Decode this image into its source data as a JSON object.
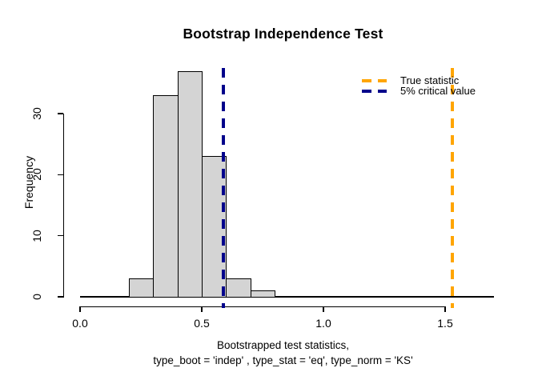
{
  "chart_data": {
    "type": "histogram",
    "title": "Bootstrap Independence Test",
    "ylabel": "Frequency",
    "xlabel_line1": "Bootstrapped test statistics,",
    "xlabel_line2": "type_boot = 'indep' , type_stat = 'eq', type_norm = 'KS'",
    "bin_width": 0.1,
    "bins": [
      {
        "from": 0.2,
        "to": 0.3,
        "count": 3
      },
      {
        "from": 0.3,
        "to": 0.4,
        "count": 33
      },
      {
        "from": 0.4,
        "to": 0.5,
        "count": 37
      },
      {
        "from": 0.5,
        "to": 0.6,
        "count": 23
      },
      {
        "from": 0.6,
        "to": 0.7,
        "count": 3
      },
      {
        "from": 0.7,
        "to": 0.8,
        "count": 1
      }
    ],
    "zero_line_range": [
      0.0,
      1.7
    ],
    "xlim": [
      0.0,
      1.7
    ],
    "ylim": [
      0,
      37
    ],
    "x_ticks": [
      {
        "value": 0.0,
        "label": "0.0"
      },
      {
        "value": 0.5,
        "label": "0.5"
      },
      {
        "value": 1.0,
        "label": "1.0"
      },
      {
        "value": 1.5,
        "label": "1.5"
      }
    ],
    "y_ticks": [
      {
        "value": 0,
        "label": "0"
      },
      {
        "value": 10,
        "label": "10"
      },
      {
        "value": 20,
        "label": "20"
      },
      {
        "value": 30,
        "label": "30"
      }
    ],
    "grid": false,
    "bar_fill": "#D4D4D4",
    "bar_border": "#000000",
    "vlines": [
      {
        "name": "true-statistic-line",
        "value": 1.53,
        "color": "#FFA500",
        "style": "dashed"
      },
      {
        "name": "critical-value-line",
        "value": 0.59,
        "color": "#00008B",
        "style": "dashed"
      }
    ],
    "legend": {
      "position": "topright",
      "items": [
        {
          "label": "True statistic",
          "color": "#FFA500"
        },
        {
          "label": "5% critical value",
          "color": "#00008B"
        }
      ]
    }
  }
}
